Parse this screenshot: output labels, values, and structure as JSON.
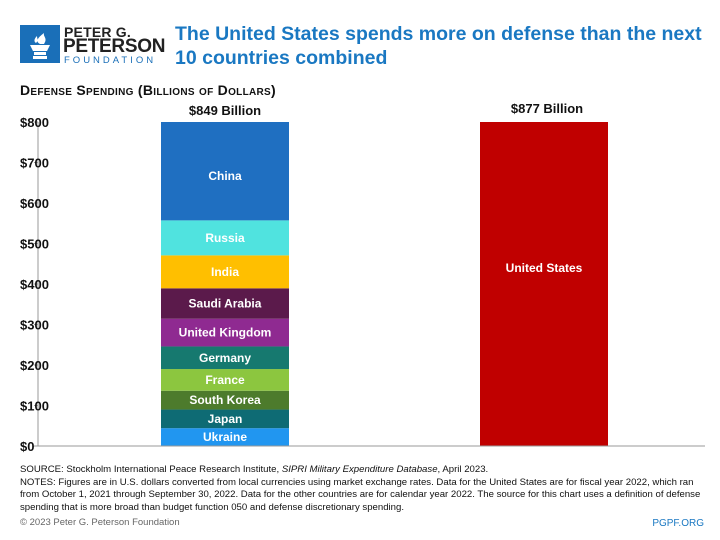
{
  "header": {
    "logo": {
      "line1": "PETER G.",
      "line2": "PETERSON",
      "line3": "FOUNDATION"
    },
    "title": "The United States spends more on defense than the next 10 countries combined"
  },
  "chart_data": {
    "type": "bar",
    "stacked": true,
    "title": "The United States spends more on defense than the next 10 countries combined",
    "ylabel": "Defense Spending (Billions of Dollars)",
    "ylim": [
      0,
      800
    ],
    "yticks": [
      0,
      100,
      200,
      300,
      400,
      500,
      600,
      700,
      800
    ],
    "ytick_labels": [
      "$0",
      "$100",
      "$200",
      "$300",
      "$400",
      "$500",
      "$600",
      "$700",
      "$800"
    ],
    "grid": false,
    "bars": [
      {
        "total_label": "$849 Billion",
        "total": 849,
        "segments": [
          {
            "name": "Ukraine",
            "value": 44,
            "color": "#2196f0"
          },
          {
            "name": "Japan",
            "value": 46,
            "color": "#0e6b74"
          },
          {
            "name": "South Korea",
            "value": 46.4,
            "color": "#4d7b2c"
          },
          {
            "name": "France",
            "value": 53.6,
            "color": "#8cc63f"
          },
          {
            "name": "Germany",
            "value": 55.8,
            "color": "#16796f"
          },
          {
            "name": "United Kingdom",
            "value": 68.5,
            "color": "#8f2a91"
          },
          {
            "name": "Saudi Arabia",
            "value": 75,
            "color": "#5b1a4b"
          },
          {
            "name": "India",
            "value": 81.4,
            "color": "#ffbf00"
          },
          {
            "name": "Russia",
            "value": 86.4,
            "color": "#50e3df"
          },
          {
            "name": "China",
            "value": 292,
            "color": "#1f6fc1"
          }
        ]
      },
      {
        "total_label": "$877 Billion",
        "total": 877,
        "segments": [
          {
            "name": "United States",
            "value": 877,
            "color": "#c00000"
          }
        ]
      }
    ]
  },
  "footer": {
    "source_prefix": "SOURCE: Stockholm International Peace Research Institute, ",
    "source_italic": "SIPRI Military Expenditure Database",
    "source_suffix": ", April 2023.",
    "notes": "NOTES: Figures are in U.S. dollars converted from local currencies using market exchange rates. Data for the United States are for fiscal year 2022, which ran from October 1, 2021 through September 30, 2022. Data for the other countries are for calendar year 2022. The source for this chart uses a definition of defense spending that is more broad than budget function 050 and defense discretionary spending.",
    "copyright": "© 2023 Peter G. Peterson Foundation",
    "url": "PGPF.ORG"
  }
}
